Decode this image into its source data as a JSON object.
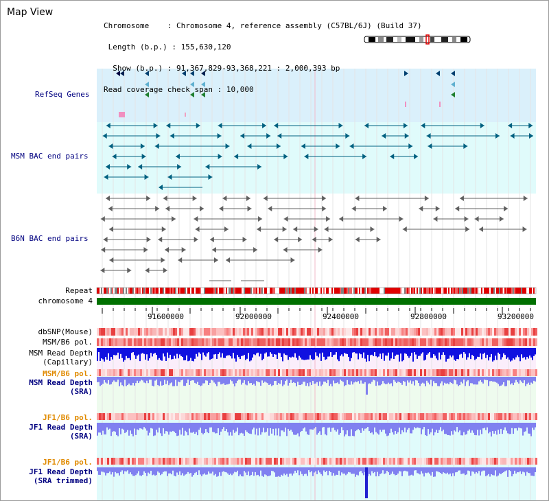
{
  "window_title": "Map View",
  "info": {
    "chromosome_key": "Chromosome",
    "chromosome_val": "Chromosome 4, reference assembly (C57BL/6J) (Build 37)",
    "length_key": "Length (b.p.)",
    "length_val": "155,630,120",
    "show_key": "Show (b.p.)",
    "show_val": "91,367,829-93,368,221 : 2,000,393 bp",
    "coverage_key": "Read coverage check span",
    "coverage_val": "10,000"
  },
  "tracks": {
    "refseq": "RefSeq Genes",
    "msm_bac": "MSM BAC end pairs",
    "b6n_bac": "B6N BAC end pairs",
    "repeat": "Repeat",
    "chromosome": "chromosome 4",
    "dbsnp": "dbSNP(Mouse)",
    "msm_b6_pol": "MSM/B6 pol.",
    "msm_depth_cap_1": "MSM Read Depth",
    "msm_depth_cap_2": "(Capillary)",
    "msm_b6_pol_2": "MSM/B6 pol.",
    "msm_depth_sra_1": "MSM Read Depth",
    "msm_depth_sra_2": "(SRA)",
    "jf1_b6_pol": "JF1/B6 pol.",
    "jf1_depth_1": "JF1 Read Depth",
    "jf1_depth_2": "(SRA)",
    "jf1_b6_pol_2": "JF1/B6 pol.",
    "jf1_trim_1": "JF1 Read Depth",
    "jf1_trim_2": "(SRA trimmed)"
  },
  "axis": {
    "ticks": [
      "91600000",
      "92000000",
      "92400000",
      "92800000",
      "93200000"
    ]
  },
  "colors": {
    "refseq_bg": "#daf0fb",
    "msm_bg": "#e0fbfb",
    "ruler_bg": "#ffffff",
    "cap_bg": "#fbeefb",
    "sra_bg": "#eefbee",
    "jf1_bg": "#e0fbfb",
    "chrom_green": "#007000",
    "msm_feature": "#006080",
    "b6n_feature": "#606060",
    "depth_blue": "#1010e0",
    "depth_light": "#8080f0"
  }
}
